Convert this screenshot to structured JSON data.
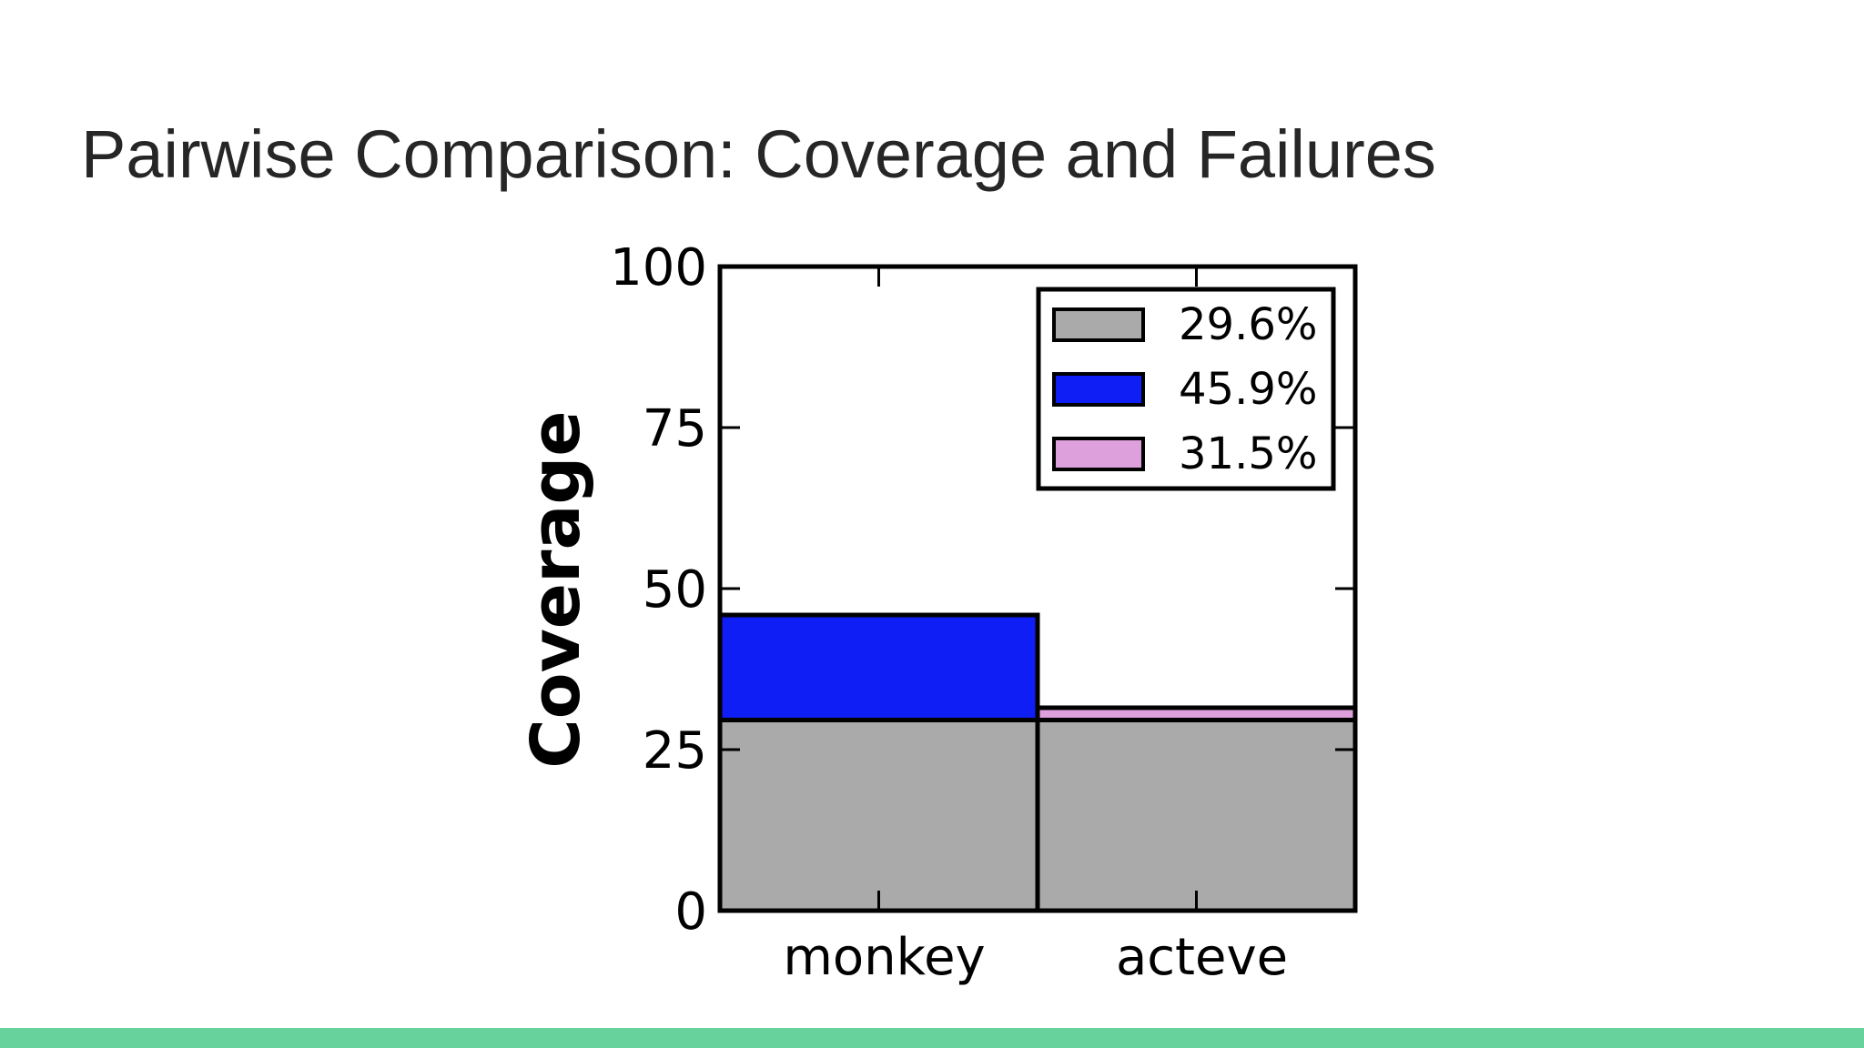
{
  "slide": {
    "title": "Pairwise Comparison: Coverage and Failures",
    "accent_color": "#68d29d"
  },
  "chart_data": {
    "type": "bar",
    "stacked": true,
    "categories": [
      "monkey",
      "acteve"
    ],
    "ylabel": "Coverage",
    "xlabel": "",
    "ylim": [
      0,
      100
    ],
    "yticks": [
      0,
      25,
      50,
      75,
      100
    ],
    "grid": false,
    "legend_position": "top-right",
    "series": [
      {
        "name": "29.6%",
        "color": "#aaaaaa",
        "values": [
          29.6,
          29.6
        ]
      },
      {
        "name": "45.9%",
        "color": "#0f1ef5",
        "values": [
          16.3,
          0
        ]
      },
      {
        "name": "31.5%",
        "color": "#dda0dd",
        "values": [
          0,
          1.9
        ]
      }
    ]
  }
}
